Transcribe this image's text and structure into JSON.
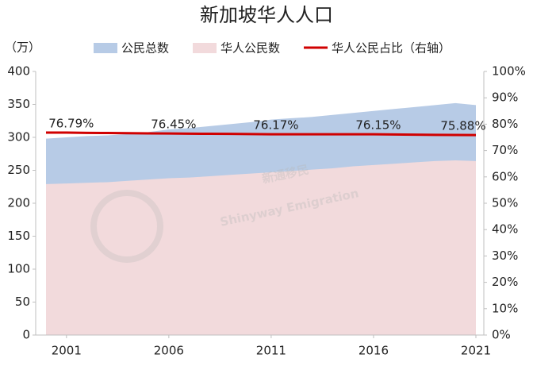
{
  "chart_data": {
    "type": "area-line",
    "title": "新加坡华人人口",
    "y_unit_label": "（万）",
    "watermark": [
      "新通移民",
      "Shinyway Emigration"
    ],
    "x": [
      2000,
      2001,
      2002,
      2003,
      2004,
      2005,
      2006,
      2007,
      2008,
      2009,
      2010,
      2011,
      2012,
      2013,
      2014,
      2015,
      2016,
      2017,
      2018,
      2019,
      2020,
      2021
    ],
    "xlim": [
      2000,
      2021
    ],
    "xticks": [
      2001,
      2006,
      2011,
      2016,
      2021
    ],
    "ylim": [
      0,
      400
    ],
    "yticks": [
      0,
      50,
      100,
      150,
      200,
      250,
      300,
      350,
      400
    ],
    "y2lim": [
      0,
      100
    ],
    "y2ticks": [
      {
        "value": 0,
        "label": "0%"
      },
      {
        "value": 10,
        "label": "10%"
      },
      {
        "value": 20,
        "label": "20%"
      },
      {
        "value": 30,
        "label": "30%"
      },
      {
        "value": 40,
        "label": "40%"
      },
      {
        "value": 50,
        "label": "50%"
      },
      {
        "value": 60,
        "label": "60%"
      },
      {
        "value": 70,
        "label": "70%"
      },
      {
        "value": 80,
        "label": "80%"
      },
      {
        "value": 90,
        "label": "90%"
      },
      {
        "value": 100,
        "label": "100%"
      }
    ],
    "legend": "top",
    "series": [
      {
        "name": "公民总数",
        "kind": "area",
        "color": "#b7cbe6",
        "values": [
          298,
          300,
          302,
          303,
          305,
          308,
          312,
          314,
          317,
          320,
          323,
          327,
          329,
          331,
          334,
          337,
          340,
          343,
          346,
          349,
          352,
          349
        ]
      },
      {
        "name": "华人公民数",
        "kind": "area",
        "color": "#f2dadc",
        "values": [
          229,
          230,
          231,
          232,
          234,
          236,
          238,
          239,
          241,
          243,
          245,
          247,
          249,
          251,
          253,
          256,
          258,
          260,
          262,
          264,
          265,
          264
        ]
      },
      {
        "name": "华人公民占比（右轴）",
        "kind": "line",
        "axis": "y2",
        "color": "#d00000",
        "values": [
          76.8,
          76.79,
          76.7,
          76.65,
          76.6,
          76.5,
          76.45,
          76.4,
          76.35,
          76.3,
          76.25,
          76.17,
          76.16,
          76.15,
          76.15,
          76.15,
          76.15,
          76.1,
          76.0,
          75.95,
          75.9,
          75.88
        ],
        "value_labels": [
          null,
          "76.79%",
          null,
          null,
          null,
          null,
          "76.45%",
          null,
          null,
          null,
          null,
          "76.17%",
          null,
          null,
          null,
          null,
          "76.15%",
          null,
          null,
          null,
          null,
          "75.88%"
        ]
      }
    ]
  }
}
